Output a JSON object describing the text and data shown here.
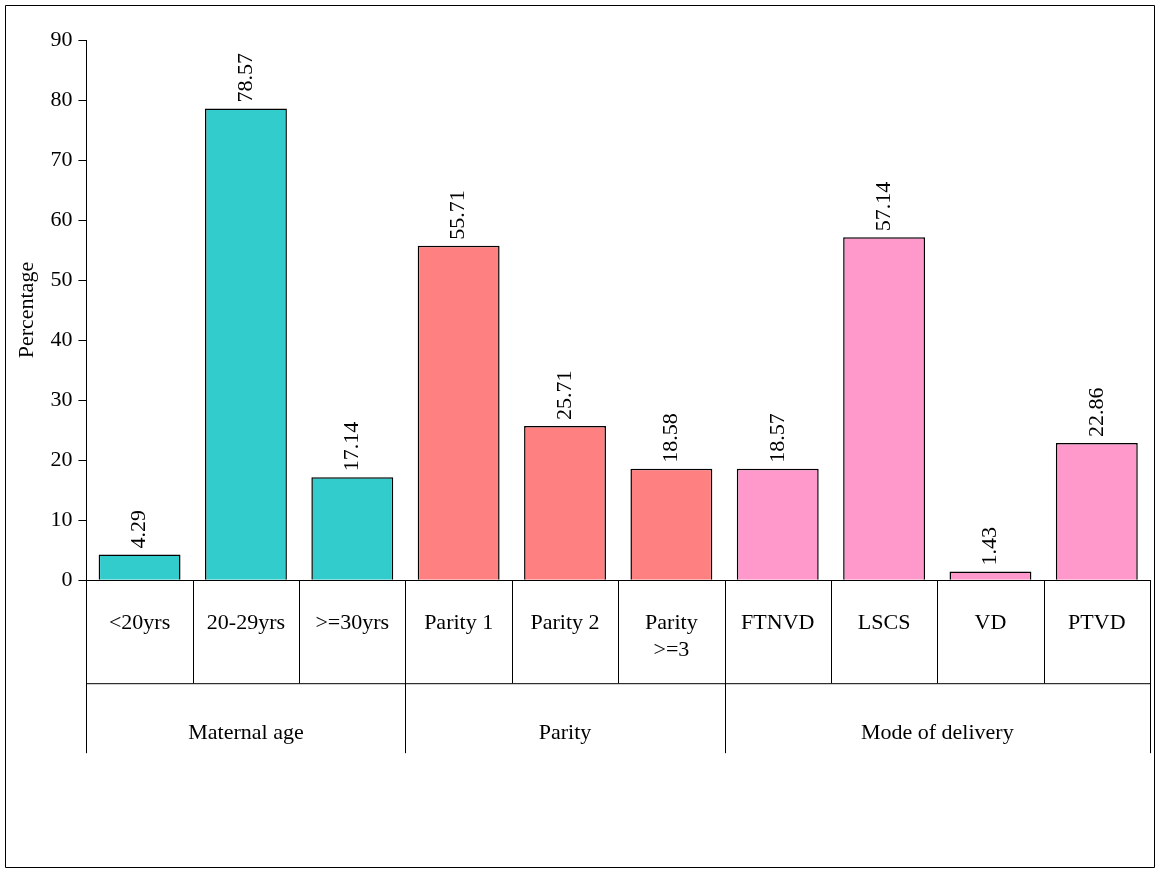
{
  "chart_data": {
    "type": "bar",
    "ylabel": "Percentage",
    "categories": [
      "<20yrs",
      "20-29yrs",
      ">=30yrs",
      "Parity 1",
      "Parity 2",
      "Parity >=3",
      "FTNVD",
      "LSCS",
      "VD",
      "PTVD"
    ],
    "values": [
      4.29,
      78.57,
      17.14,
      55.71,
      25.71,
      18.58,
      18.57,
      57.14,
      1.43,
      22.86
    ],
    "colors": [
      "#33cccc",
      "#33cccc",
      "#33cccc",
      "#ff8080",
      "#ff8080",
      "#ff8080",
      "#ff99cc",
      "#ff99cc",
      "#ff99cc",
      "#ff99cc"
    ],
    "ylim": [
      0,
      90
    ],
    "yticks": [
      0,
      10,
      20,
      30,
      40,
      50,
      60,
      70,
      80,
      90
    ],
    "data_labels": true,
    "annotations": [
      "Maternal age",
      "Parity",
      "Mode of delivery"
    ]
  }
}
